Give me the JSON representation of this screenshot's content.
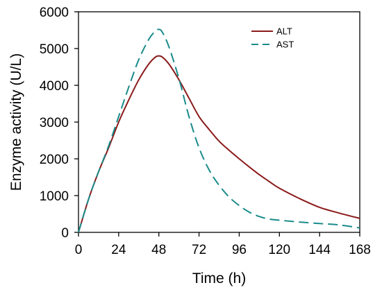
{
  "chart_data": {
    "type": "line",
    "title": "",
    "xlabel": "Time (h)",
    "ylabel": "Enzyme activity (U/L)",
    "xlim": [
      0,
      168
    ],
    "ylim": [
      0,
      6000
    ],
    "xticks": [
      0,
      24,
      48,
      72,
      96,
      120,
      144,
      168
    ],
    "yticks": [
      0,
      1000,
      2000,
      3000,
      4000,
      5000,
      6000
    ],
    "grid": false,
    "legend_position": "top-right",
    "series": [
      {
        "name": "ALT",
        "color": "#8b1a1a",
        "dash": "solid",
        "x": [
          0,
          6,
          12,
          18,
          24,
          30,
          36,
          42,
          46,
          48,
          50,
          54,
          60,
          66,
          72,
          78,
          84,
          90,
          96,
          102,
          108,
          114,
          120,
          132,
          144,
          156,
          168
        ],
        "y": [
          0,
          900,
          1650,
          2300,
          3000,
          3600,
          4150,
          4580,
          4770,
          4800,
          4770,
          4580,
          4150,
          3650,
          3150,
          2800,
          2480,
          2230,
          2000,
          1780,
          1570,
          1380,
          1200,
          920,
          680,
          520,
          380
        ]
      },
      {
        "name": "AST",
        "color": "#1a8a8a",
        "dash": "dashed",
        "x": [
          0,
          6,
          12,
          18,
          24,
          30,
          36,
          42,
          46,
          48,
          50,
          54,
          60,
          66,
          72,
          78,
          84,
          90,
          96,
          102,
          108,
          114,
          120,
          132,
          144,
          156,
          168
        ],
        "y": [
          0,
          900,
          1650,
          2350,
          3150,
          3950,
          4700,
          5250,
          5480,
          5520,
          5450,
          5050,
          4180,
          3150,
          2300,
          1700,
          1280,
          960,
          730,
          550,
          430,
          360,
          330,
          280,
          240,
          200,
          120
        ]
      }
    ]
  }
}
